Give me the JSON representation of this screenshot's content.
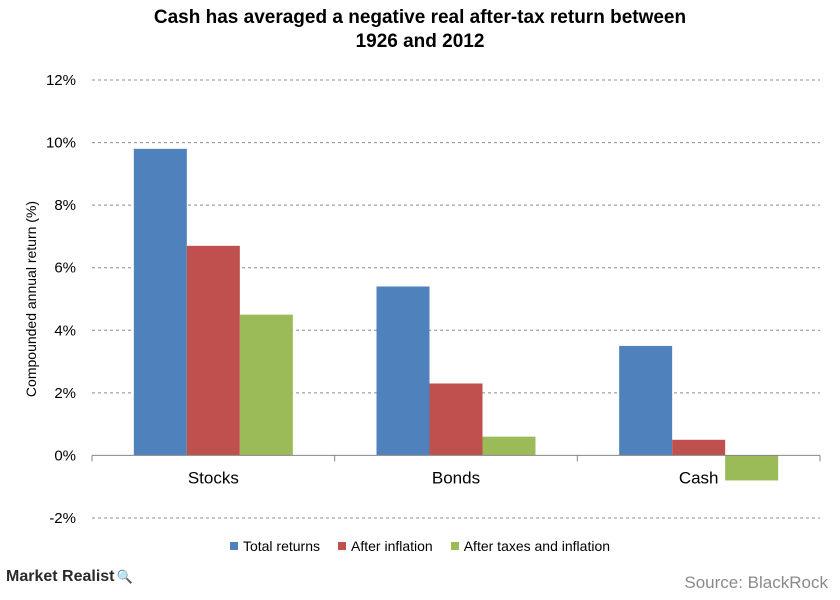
{
  "chart_data": {
    "type": "bar",
    "title_lines": [
      "Cash has averaged a negative real after-tax return between",
      "1926 and 2012"
    ],
    "xlabel": "",
    "ylabel": "Compounded annual return (%)",
    "categories": [
      "Stocks",
      "Bonds",
      "Cash"
    ],
    "series": [
      {
        "name": "Total returns",
        "values": [
          9.8,
          5.4,
          3.5
        ],
        "color": "#4f81bd"
      },
      {
        "name": "After inflation",
        "values": [
          6.7,
          2.3,
          0.5
        ],
        "color": "#c0504d"
      },
      {
        "name": "After taxes and inflation",
        "values": [
          4.5,
          0.6,
          -0.8
        ],
        "color": "#9bbb59"
      }
    ],
    "ylim": [
      -2,
      12
    ],
    "yticks": [
      -2,
      0,
      2,
      4,
      6,
      8,
      10,
      12
    ],
    "ytick_labels": [
      "-2%",
      "0%",
      "2%",
      "4%",
      "6%",
      "8%",
      "10%",
      "12%"
    ],
    "grid": true,
    "legend_position": "bottom"
  },
  "footer": {
    "logo": "Market Realist",
    "source": "Source: BlackRock"
  }
}
